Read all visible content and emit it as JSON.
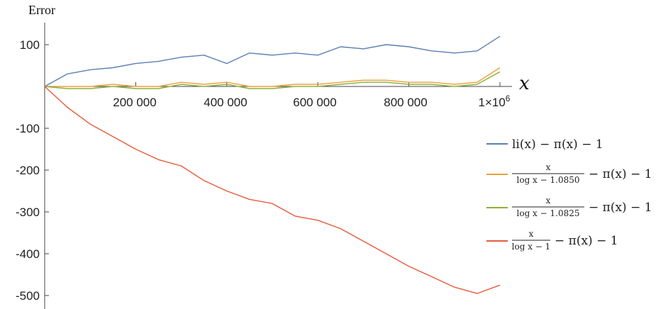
{
  "chart_data": {
    "type": "line",
    "ylabel": "Error",
    "xlabel": "x",
    "xlim": [
      0,
      1000000
    ],
    "ylim": [
      -510,
      150
    ],
    "x_ticks": [
      200000,
      400000,
      600000,
      800000,
      1000000
    ],
    "x_tick_labels": [
      "200 000",
      "400 000",
      "600 000",
      "800 000",
      "1×10^6"
    ],
    "y_ticks": [
      100,
      -100,
      -200,
      -300,
      -400,
      -500
    ],
    "y_tick_labels": [
      "100",
      "-100",
      "-200",
      "-300",
      "-400",
      "-500"
    ],
    "grid": false,
    "legend_position": "right",
    "x": [
      0,
      50000,
      100000,
      150000,
      200000,
      250000,
      300000,
      350000,
      400000,
      450000,
      500000,
      550000,
      600000,
      650000,
      700000,
      750000,
      800000,
      850000,
      900000,
      950000,
      1000000
    ],
    "series": [
      {
        "legend": {
          "main": "li(x) − π(x) − 1"
        },
        "color": "#5B7FB5",
        "values": [
          0,
          30,
          40,
          45,
          55,
          60,
          70,
          75,
          55,
          80,
          75,
          80,
          75,
          95,
          90,
          100,
          95,
          85,
          80,
          85,
          120
        ]
      },
      {
        "legend": {
          "num": "x",
          "den": "log x − 1.0850",
          "rest": "− π(x) − 1"
        },
        "color": "#E9A23B",
        "values": [
          0,
          0,
          0,
          5,
          0,
          0,
          10,
          5,
          10,
          0,
          0,
          5,
          5,
          10,
          15,
          15,
          10,
          10,
          5,
          10,
          45
        ]
      },
      {
        "legend": {
          "num": "x",
          "den": "log x − 1.0825",
          "rest": "− π(x) − 1"
        },
        "color": "#8DB03A",
        "values": [
          0,
          -5,
          -5,
          0,
          -5,
          -5,
          5,
          0,
          5,
          -5,
          -5,
          0,
          0,
          5,
          10,
          10,
          5,
          5,
          0,
          5,
          35
        ]
      },
      {
        "legend": {
          "num": "x",
          "den": "log x − 1",
          "rest": "− π(x) − 1"
        },
        "color": "#E55B3A",
        "values": [
          0,
          -50,
          -90,
          -120,
          -150,
          -175,
          -190,
          -225,
          -250,
          -270,
          -280,
          -310,
          -320,
          -340,
          -370,
          -400,
          -430,
          -455,
          -480,
          -495,
          -475
        ]
      }
    ]
  }
}
